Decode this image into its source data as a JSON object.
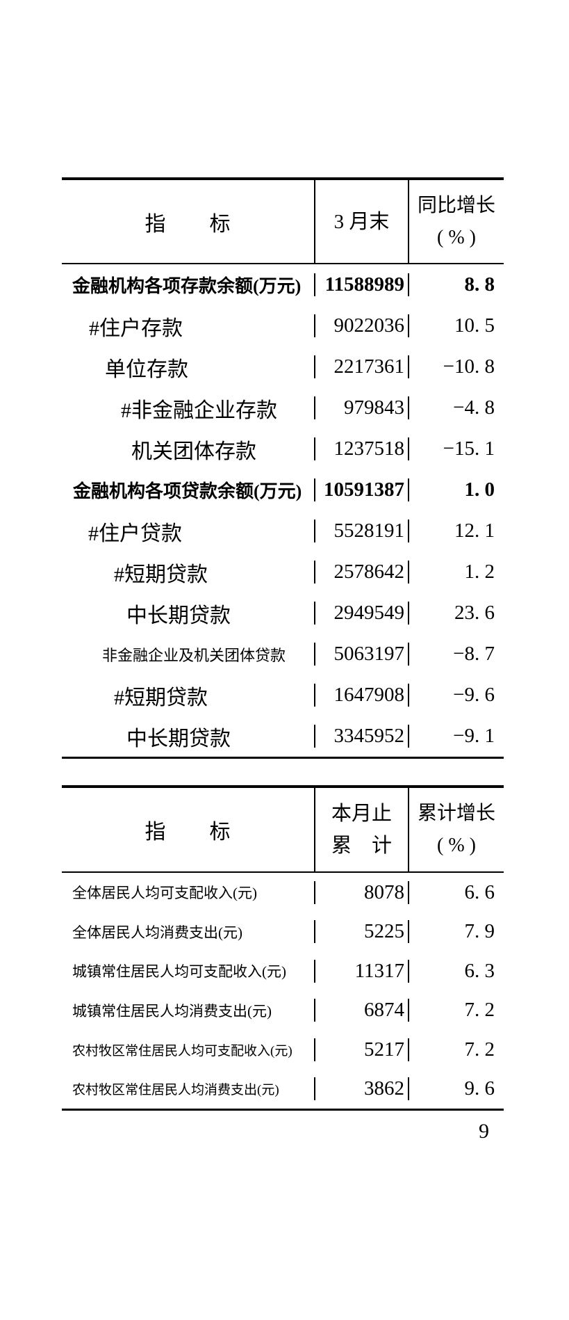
{
  "page": {
    "number": "9"
  },
  "table1": {
    "header": {
      "col1": "指　　标",
      "col2": "3 月末",
      "col3_line1": "同比增长",
      "col3_line2": "( % )"
    },
    "rows": [
      {
        "label": "金融机构各项存款余额(万元)",
        "value": "11588989",
        "growth": "8. 8",
        "bold": true,
        "indent": 15
      },
      {
        "label": "#住户存款",
        "value": "9022036",
        "growth": "10. 5",
        "bold": false,
        "indent": 39
      },
      {
        "label": "单位存款",
        "value": "2217361",
        "growth": "−10. 8",
        "bold": false,
        "indent": 62
      },
      {
        "label": "#非金融企业存款",
        "value": "979843",
        "growth": "−4. 8",
        "bold": false,
        "indent": 85
      },
      {
        "label": "机关团体存款",
        "value": "1237518",
        "growth": "−15. 1",
        "bold": false,
        "indent": 100
      },
      {
        "label": "金融机构各项贷款余额(万元)",
        "value": "10591387",
        "growth": "1. 0",
        "bold": true,
        "indent": 16
      },
      {
        "label": "#住户贷款",
        "value": "5528191",
        "growth": "12. 1",
        "bold": false,
        "indent": 38
      },
      {
        "label": "#短期贷款",
        "value": "2578642",
        "growth": "1. 2",
        "bold": false,
        "indent": 75
      },
      {
        "label": "中长期贷款",
        "value": "2949549",
        "growth": "23. 6",
        "bold": false,
        "indent": 93
      },
      {
        "label": "非金融企业及机关团体贷款",
        "value": "5063197",
        "growth": "−8. 7",
        "bold": false,
        "indent": 58
      },
      {
        "label": "#短期贷款",
        "value": "1647908",
        "growth": "−9. 6",
        "bold": false,
        "indent": 75
      },
      {
        "label": "中长期贷款",
        "value": "3345952",
        "growth": "−9. 1",
        "bold": false,
        "indent": 93
      }
    ]
  },
  "table2": {
    "header": {
      "col1": "指　　标",
      "col2_line1": "本月止",
      "col2_line2": "累　计",
      "col3_line1": "累计增长",
      "col3_line2": "( % )"
    },
    "rows": [
      {
        "label": "全体居民人均可支配收入(元)",
        "value": "8078",
        "growth": "6. 6",
        "bold": false,
        "indent": 15
      },
      {
        "label": "全体居民人均消费支出(元)",
        "value": "5225",
        "growth": "7. 9",
        "bold": false,
        "indent": 15
      },
      {
        "label": "城镇常住居民人均可支配收入(元)",
        "value": "11317",
        "growth": "6. 3",
        "bold": false,
        "indent": 15
      },
      {
        "label": "城镇常住居民人均消费支出(元)",
        "value": "6874",
        "growth": "7. 2",
        "bold": false,
        "indent": 15
      },
      {
        "label": "农村牧区常住居民人均可支配收入(元)",
        "value": "5217",
        "growth": "7. 2",
        "bold": false,
        "indent": 15
      },
      {
        "label": "农村牧区常住居民人均消费支出(元)",
        "value": "3862",
        "growth": "9. 6",
        "bold": false,
        "indent": 15
      }
    ]
  }
}
